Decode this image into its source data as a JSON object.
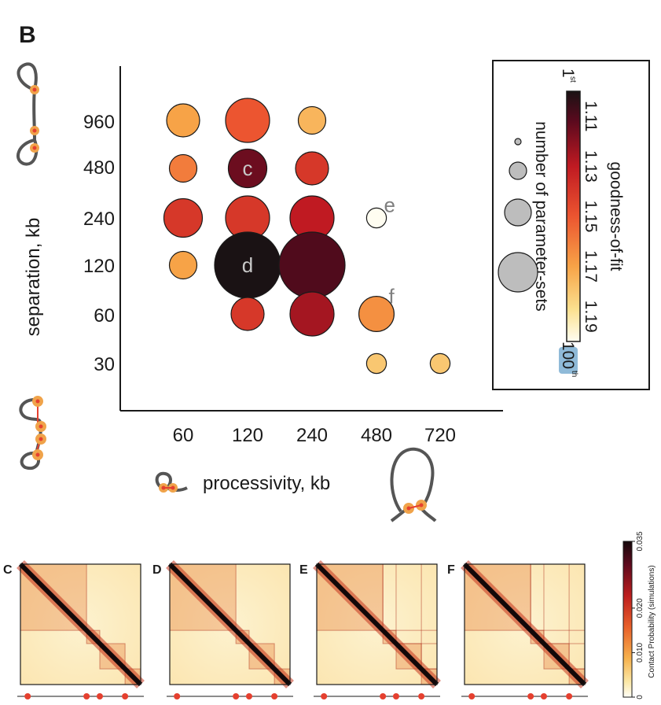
{
  "panel_b": {
    "letter": "B",
    "colorbar_top_label": "1",
    "colorbar_top_sup": "st",
    "colorbar_bottom_label": "100",
    "colorbar_bottom_sup": "th",
    "legend_title": "goodness-of-fit",
    "legend_subtitle": "number of parameter-sets"
  },
  "chart_data": [
    {
      "type": "scatter",
      "xlabel": "processivity, kb",
      "ylabel": "separation, kb",
      "x_ticks": [
        "60",
        "120",
        "240",
        "480",
        "720"
      ],
      "y_ticks": [
        "960",
        "480",
        "240",
        "120",
        "60",
        "30"
      ],
      "color_scale": {
        "ticks": [
          "1.11",
          "1.13",
          "1.15",
          "1.17",
          "1.19"
        ],
        "min": 1.1,
        "max": 1.2
      },
      "points": [
        {
          "x": "60",
          "y": "960",
          "fit": 1.17,
          "size": 2
        },
        {
          "x": "120",
          "y": "960",
          "fit": 1.15,
          "size": 3
        },
        {
          "x": "240",
          "y": "960",
          "fit": 1.175,
          "size": 1.5
        },
        {
          "x": "60",
          "y": "480",
          "fit": 1.16,
          "size": 1.5
        },
        {
          "x": "120",
          "y": "480",
          "fit": 1.115,
          "size": 2.5,
          "label": "c"
        },
        {
          "x": "240",
          "y": "480",
          "fit": 1.14,
          "size": 2
        },
        {
          "x": "60",
          "y": "240",
          "fit": 1.14,
          "size": 2.5
        },
        {
          "x": "120",
          "y": "240",
          "fit": 1.14,
          "size": 3
        },
        {
          "x": "240",
          "y": "240",
          "fit": 1.13,
          "size": 3
        },
        {
          "x": "480",
          "y": "240",
          "fit": 1.2,
          "size": 0.8,
          "label": "e"
        },
        {
          "x": "60",
          "y": "120",
          "fit": 1.17,
          "size": 1.5
        },
        {
          "x": "120",
          "y": "120",
          "fit": 1.1,
          "size": 5,
          "label": "d"
        },
        {
          "x": "240",
          "y": "120",
          "fit": 1.11,
          "size": 5
        },
        {
          "x": "120",
          "y": "60",
          "fit": 1.14,
          "size": 2
        },
        {
          "x": "240",
          "y": "60",
          "fit": 1.125,
          "size": 3
        },
        {
          "x": "480",
          "y": "60",
          "fit": 1.165,
          "size": 2.2,
          "label": "f"
        },
        {
          "x": "480",
          "y": "30",
          "fit": 1.18,
          "size": 0.8
        },
        {
          "x": "720",
          "y": "30",
          "fit": 1.18,
          "size": 0.8
        }
      ]
    },
    {
      "type": "heatmap",
      "panels": [
        {
          "letter": "C",
          "markers": [
            0.06,
            0.55,
            0.66,
            0.87
          ]
        },
        {
          "letter": "D",
          "markers": [
            0.06,
            0.55,
            0.66,
            0.87
          ]
        },
        {
          "letter": "E",
          "markers": [
            0.06,
            0.55,
            0.66,
            0.87
          ]
        },
        {
          "letter": "F",
          "markers": [
            0.06,
            0.55,
            0.66,
            0.87
          ]
        }
      ],
      "colorbar": {
        "label": "Contact Probability (simulations)",
        "ticks": [
          "0",
          "0.010",
          "0.020",
          "0.035"
        ]
      }
    }
  ]
}
